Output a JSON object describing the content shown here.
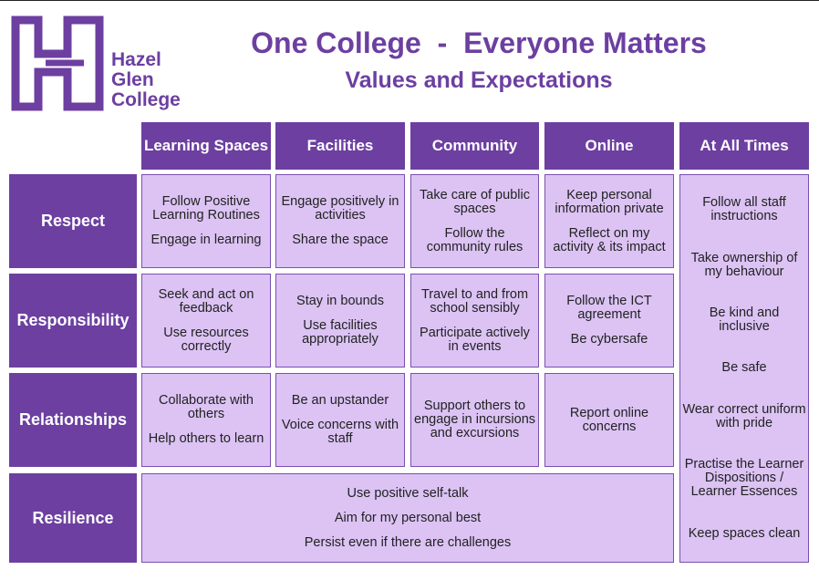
{
  "header": {
    "logo": [
      "Hazel",
      "Glen",
      "College"
    ],
    "title": "One College  -  Everyone Matters",
    "subtitle": "Values and Expectations"
  },
  "columns": [
    "Learning Spaces",
    "Facilities",
    "Community",
    "Online",
    "At All Times"
  ],
  "rows": [
    {
      "label": "Respect",
      "cells": [
        [
          "Follow Positive Learning Routines",
          "Engage in learning"
        ],
        [
          "Engage positively in activities",
          "Share the space"
        ],
        [
          "Take care of public spaces",
          "Follow the community rules"
        ],
        [
          "Keep personal information private",
          "Reflect on my activity & its impact"
        ]
      ]
    },
    {
      "label": "Responsibility",
      "cells": [
        [
          "Seek and act on feedback",
          "Use resources correctly"
        ],
        [
          "Stay in bounds",
          "Use facilities appropriately"
        ],
        [
          "Travel to and from school sensibly",
          "Participate actively in events"
        ],
        [
          "Follow the ICT agreement",
          "Be cybersafe"
        ]
      ]
    },
    {
      "label": "Relationships",
      "cells": [
        [
          "Collaborate with others",
          "Help others to learn"
        ],
        [
          "Be an upstander",
          "Voice concerns with staff"
        ],
        [
          "Support others to engage in incursions and excursions"
        ],
        [
          "Report online concerns"
        ]
      ]
    }
  ],
  "resilience": {
    "label": "Resilience",
    "items": [
      "Use positive self-talk",
      "Aim for my personal best",
      "Persist even if there are challenges"
    ]
  },
  "at_all_times": [
    "Follow all staff instructions",
    "Take ownership of my behaviour",
    "Be kind and inclusive",
    "Be safe",
    "Wear correct uniform with pride",
    "Practise the Learner Dispositions / Learner Essences",
    "Keep spaces clean"
  ]
}
